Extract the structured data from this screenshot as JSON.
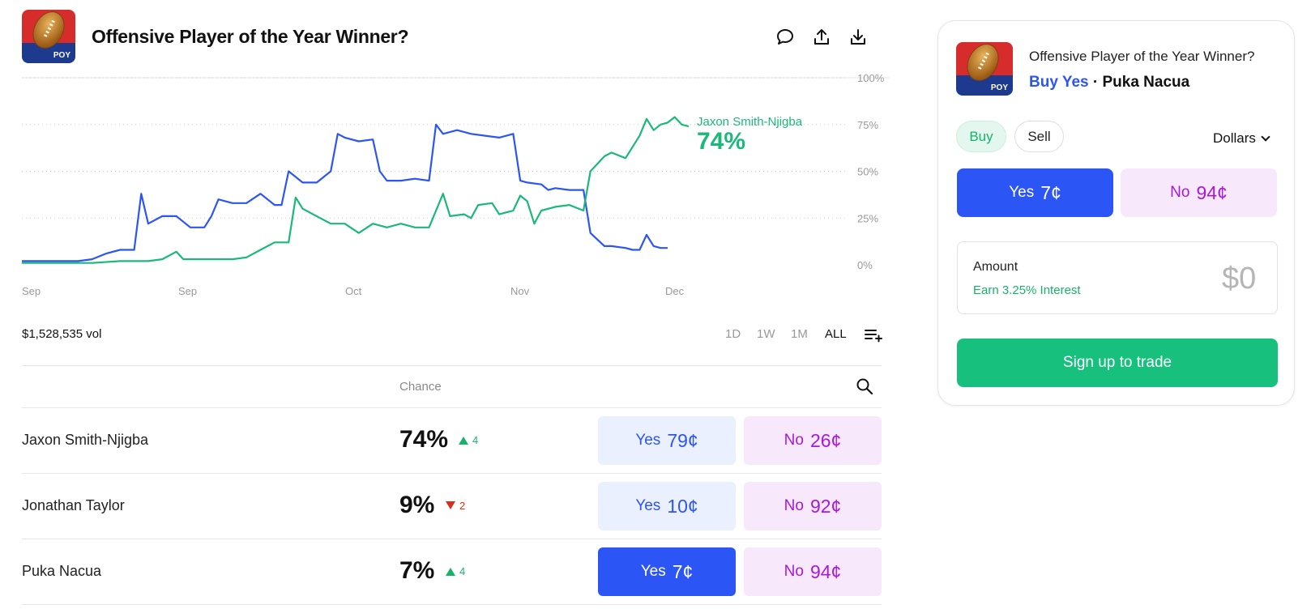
{
  "header": {
    "title": "Offensive Player of the Year Winner?",
    "logo_text": "POY"
  },
  "chart_data": {
    "type": "line",
    "x_ticks": [
      "Sep",
      "Sep",
      "Oct",
      "Nov",
      "Dec"
    ],
    "y_ticks": [
      "0%",
      "25%",
      "50%",
      "75%",
      "100%"
    ],
    "ylim": [
      0,
      100
    ],
    "grid": true,
    "series": [
      {
        "name": "Jaxon Smith-Njigba",
        "color": "#1bb979",
        "current": "74%",
        "points": [
          [
            0,
            1
          ],
          [
            10,
            1
          ],
          [
            14,
            2
          ],
          [
            18,
            2
          ],
          [
            20,
            3
          ],
          [
            22,
            7
          ],
          [
            23,
            3
          ],
          [
            28,
            3
          ],
          [
            30,
            3
          ],
          [
            32,
            4
          ],
          [
            34,
            8
          ],
          [
            36,
            12
          ],
          [
            38,
            12
          ],
          [
            39,
            36
          ],
          [
            40,
            30
          ],
          [
            44,
            22
          ],
          [
            46,
            22
          ],
          [
            48,
            17
          ],
          [
            50,
            22
          ],
          [
            52,
            20
          ],
          [
            54,
            22
          ],
          [
            56,
            20
          ],
          [
            58,
            20
          ],
          [
            60,
            38
          ],
          [
            61,
            26
          ],
          [
            63,
            27
          ],
          [
            64,
            25
          ],
          [
            65,
            32
          ],
          [
            67,
            33
          ],
          [
            68,
            27
          ],
          [
            70,
            29
          ],
          [
            71,
            37
          ],
          [
            72,
            34
          ],
          [
            73,
            22
          ],
          [
            74,
            29
          ],
          [
            76,
            31
          ],
          [
            78,
            32
          ],
          [
            80,
            29
          ],
          [
            81,
            50
          ],
          [
            83,
            58
          ],
          [
            84,
            60
          ],
          [
            86,
            57
          ],
          [
            88,
            69
          ],
          [
            89,
            78
          ],
          [
            90,
            72
          ],
          [
            91,
            75
          ],
          [
            92,
            76
          ],
          [
            93,
            79
          ],
          [
            94,
            75
          ],
          [
            95,
            74
          ]
        ]
      },
      {
        "name": "Jonathan Taylor",
        "color": "#2c55f5",
        "points": [
          [
            0,
            2
          ],
          [
            4,
            2
          ],
          [
            8,
            2
          ],
          [
            10,
            3
          ],
          [
            12,
            6
          ],
          [
            14,
            8
          ],
          [
            16,
            8
          ],
          [
            17,
            38
          ],
          [
            18,
            22
          ],
          [
            20,
            26
          ],
          [
            22,
            26
          ],
          [
            24,
            20
          ],
          [
            26,
            20
          ],
          [
            27,
            26
          ],
          [
            28,
            35
          ],
          [
            30,
            33
          ],
          [
            32,
            33
          ],
          [
            34,
            38
          ],
          [
            36,
            32
          ],
          [
            37,
            32
          ],
          [
            38,
            50
          ],
          [
            40,
            44
          ],
          [
            42,
            44
          ],
          [
            44,
            50
          ],
          [
            45,
            70
          ],
          [
            46,
            68
          ],
          [
            48,
            66
          ],
          [
            50,
            67
          ],
          [
            51,
            50
          ],
          [
            52,
            45
          ],
          [
            54,
            45
          ],
          [
            56,
            46
          ],
          [
            58,
            45
          ],
          [
            59,
            75
          ],
          [
            60,
            70
          ],
          [
            62,
            72
          ],
          [
            64,
            70
          ],
          [
            66,
            69
          ],
          [
            68,
            68
          ],
          [
            70,
            70
          ],
          [
            71,
            45
          ],
          [
            72,
            44
          ],
          [
            74,
            43
          ],
          [
            75,
            40
          ],
          [
            76,
            41
          ],
          [
            78,
            40
          ],
          [
            80,
            40
          ],
          [
            81,
            17
          ],
          [
            83,
            10
          ],
          [
            84,
            10
          ],
          [
            86,
            9
          ],
          [
            87,
            8
          ],
          [
            88,
            8
          ],
          [
            89,
            16
          ],
          [
            90,
            10
          ],
          [
            91,
            9
          ],
          [
            92,
            9
          ]
        ]
      }
    ]
  },
  "volume": "$1,528,535 vol",
  "ranges": [
    "1D",
    "1W",
    "1M",
    "ALL"
  ],
  "active_range": "ALL",
  "table": {
    "header_chance": "Chance",
    "rows": [
      {
        "name": "Jaxon Smith-Njigba",
        "chance": "74%",
        "delta": "4",
        "direction": "up",
        "yes_label": "Yes",
        "yes_price": "79¢",
        "no_label": "No",
        "no_price": "26¢"
      },
      {
        "name": "Jonathan Taylor",
        "chance": "9%",
        "delta": "2",
        "direction": "down",
        "yes_label": "Yes",
        "yes_price": "10¢",
        "no_label": "No",
        "no_price": "92¢"
      },
      {
        "name": "Puka Nacua",
        "chance": "7%",
        "delta": "4",
        "direction": "up",
        "yes_label": "Yes",
        "yes_price": "7¢",
        "no_label": "No",
        "no_price": "94¢"
      }
    ]
  },
  "panel": {
    "title": "Offensive Player of the Year Winner?",
    "action": "Buy Yes",
    "separator": "·",
    "selection": "Puka Nacua",
    "buy_label": "Buy",
    "sell_label": "Sell",
    "currency": "Dollars",
    "yes_label": "Yes",
    "yes_price": "7¢",
    "no_label": "No",
    "no_price": "94¢",
    "amount_label": "Amount",
    "interest": "Earn 3.25% Interest",
    "amount_value": "$0",
    "signup_label": "Sign up to trade",
    "logo_text": "POY"
  },
  "colors": {
    "accent_blue": "#2c55f5",
    "accent_green": "#17c07d",
    "accent_purple": "#a818d9"
  }
}
